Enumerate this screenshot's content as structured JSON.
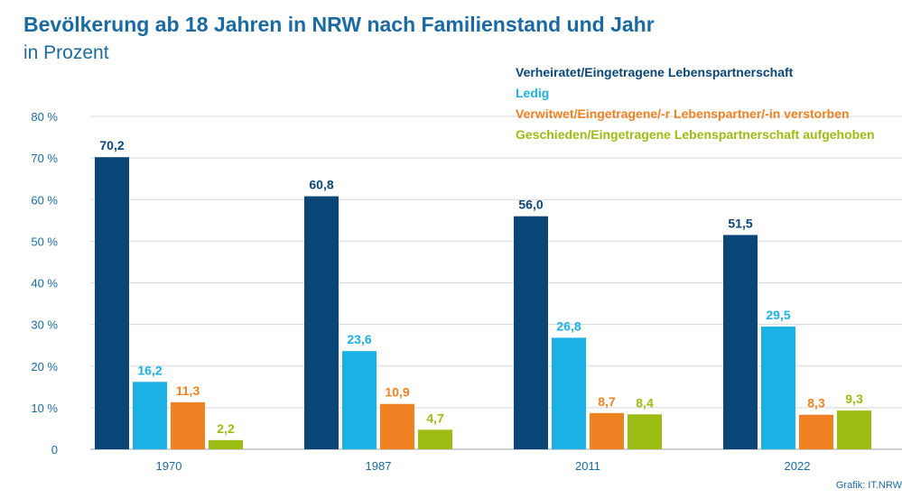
{
  "title": "Bevölkerung ab 18 Jahren in NRW nach Familienstand und Jahr",
  "subtitle": "in Prozent",
  "credit": "Grafik: IT.NRW",
  "chart_data": {
    "type": "bar",
    "categories": [
      "1970",
      "1987",
      "2011",
      "2022"
    ],
    "series": [
      {
        "name": "Verheiratet/Eingetragene Lebenspartnerschaft",
        "color": "#0a4577",
        "values": [
          70.2,
          60.8,
          56.0,
          51.5
        ],
        "labels": [
          "70,2",
          "60,8",
          "56,0",
          "51,5"
        ]
      },
      {
        "name": "Ledig",
        "color": "#1bb1e6",
        "values": [
          16.2,
          23.6,
          26.8,
          29.5
        ],
        "labels": [
          "16,2",
          "23,6",
          "26,8",
          "29,5"
        ]
      },
      {
        "name": "Verwitwet/Eingetragene/-r Lebenspartner/-in verstorben",
        "color": "#f08123",
        "values": [
          11.3,
          10.9,
          8.7,
          8.3
        ],
        "labels": [
          "11,3",
          "10,9",
          "8,7",
          "8,3"
        ]
      },
      {
        "name": "Geschieden/Eingetragene Lebenspartnerschaft aufgehoben",
        "color": "#9cbb13",
        "values": [
          2.2,
          4.7,
          8.4,
          9.3
        ],
        "labels": [
          "2,2",
          "4,7",
          "8,4",
          "9,3"
        ]
      }
    ],
    "yticks": [
      "0",
      "10 %",
      "20 %",
      "30 %",
      "40 %",
      "50 %",
      "60 %",
      "70 %",
      "80 %"
    ],
    "ylim": [
      0,
      80
    ],
    "grid": true,
    "legend_position": "top-right"
  }
}
